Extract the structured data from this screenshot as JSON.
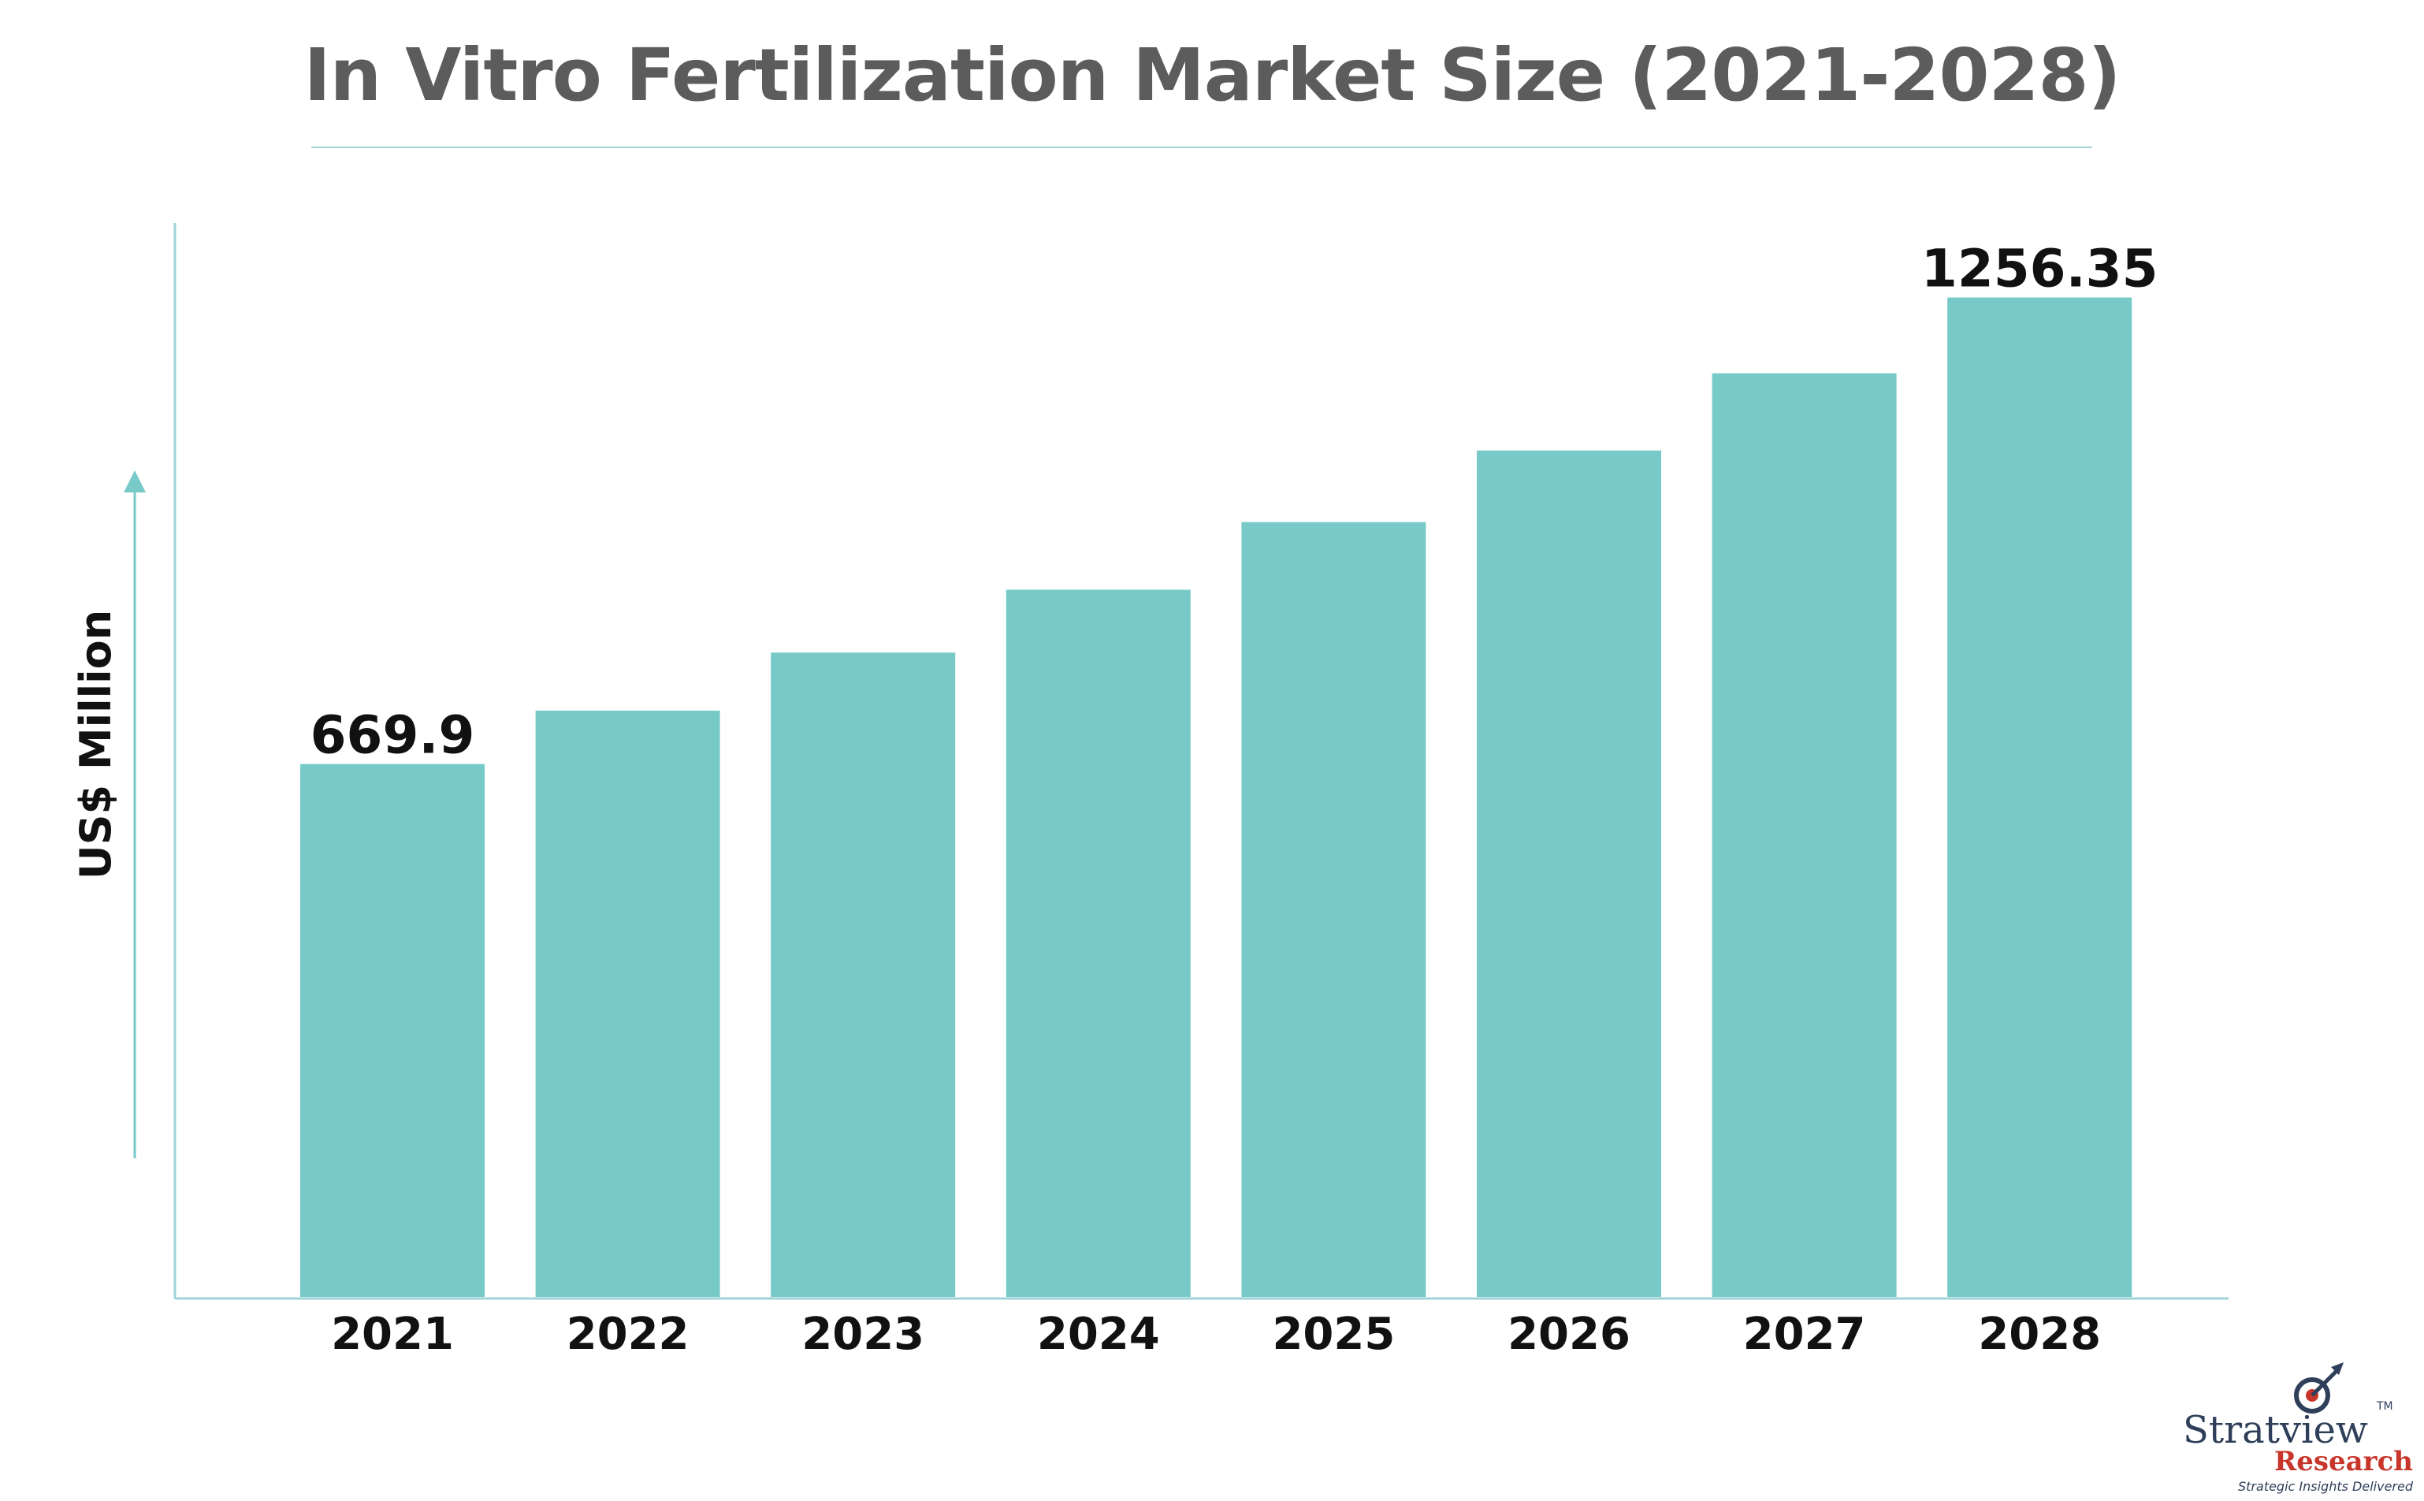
{
  "chart_data": {
    "type": "bar",
    "title": "In Vitro Fertilization Market Size (2021-2028)",
    "ylabel": "US$ Million",
    "xlabel": "",
    "categories": [
      "2021",
      "2022",
      "2023",
      "2024",
      "2025",
      "2026",
      "2027",
      "2028"
    ],
    "values": [
      669.9,
      737,
      810,
      889,
      974,
      1064,
      1161,
      1256.35
    ],
    "data_labels": [
      "669.9",
      "",
      "",
      "",
      "",
      "",
      "",
      "1256.35"
    ],
    "ylim": [
      0,
      1350
    ],
    "grid": false,
    "legend": "none",
    "colors": {
      "bar": "#77cac8",
      "axis": "#9fd3da",
      "title": "#5c5c5c"
    }
  },
  "branding": {
    "name": "Stratview",
    "tm": "TM",
    "sub": "Research",
    "tagline": "Strategic Insights Delivered"
  }
}
